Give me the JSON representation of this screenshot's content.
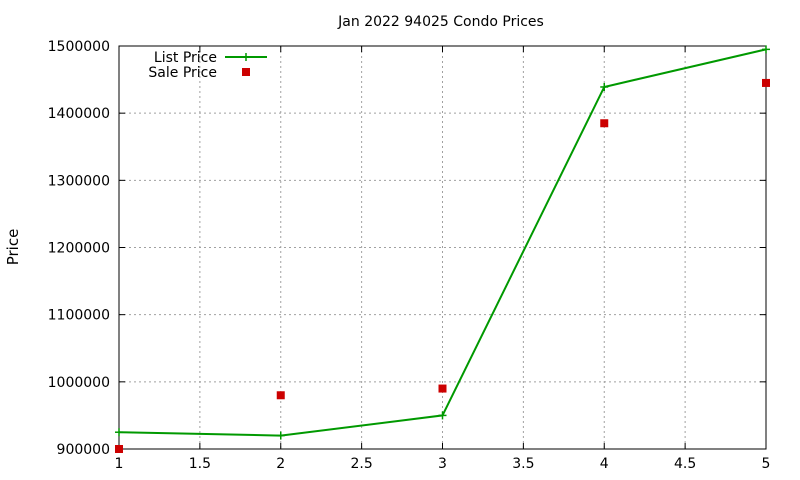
{
  "chart_data": {
    "type": "line",
    "title": "Jan 2022 94025 Condo Prices",
    "xlabel": "",
    "ylabel": "Price",
    "xlim": [
      1,
      5
    ],
    "ylim": [
      900000,
      1500000
    ],
    "xticks": [
      1,
      1.5,
      2,
      2.5,
      3,
      3.5,
      4,
      4.5,
      5
    ],
    "yticks": [
      900000,
      1000000,
      1100000,
      1200000,
      1300000,
      1400000,
      1500000
    ],
    "grid": true,
    "legend_position": "top-left",
    "series": [
      {
        "name": "List Price",
        "style": "linespoints",
        "marker": "plus",
        "color": "#009900",
        "x": [
          1,
          2,
          3,
          4,
          5
        ],
        "y": [
          925000,
          920000,
          950000,
          1439000,
          1495000
        ]
      },
      {
        "name": "Sale Price",
        "style": "points",
        "marker": "square",
        "color": "#cc0000",
        "x": [
          1,
          2,
          3,
          4,
          5
        ],
        "y": [
          900000,
          980000,
          990000,
          1385000,
          1445000
        ]
      }
    ]
  }
}
